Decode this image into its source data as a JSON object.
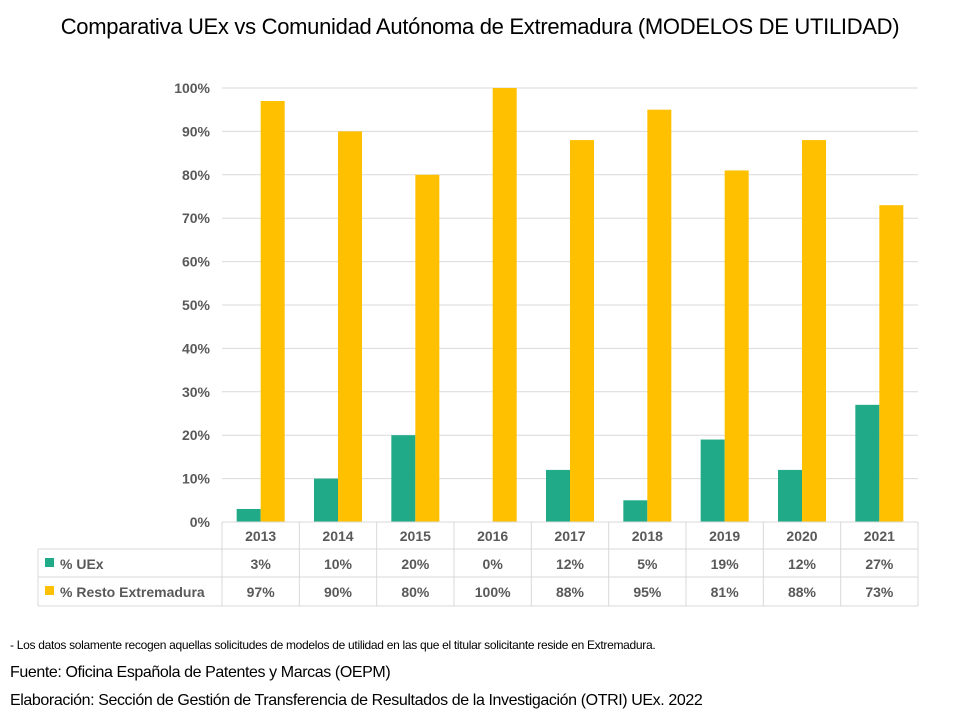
{
  "chart_data": {
    "type": "bar",
    "title": "Comparativa UEx vs Comunidad Autónoma de Extremadura (MODELOS DE UTILIDAD)",
    "categories": [
      "2013",
      "2014",
      "2015",
      "2016",
      "2017",
      "2018",
      "2019",
      "2020",
      "2021"
    ],
    "ylim": [
      0,
      100
    ],
    "yticks": [
      "0%",
      "10%",
      "20%",
      "30%",
      "40%",
      "50%",
      "60%",
      "70%",
      "80%",
      "90%",
      "100%"
    ],
    "grid": true,
    "legend": "data-table",
    "series": [
      {
        "name": "% UEx",
        "color": "#21AA87",
        "values": [
          3,
          10,
          20,
          0,
          12,
          5,
          19,
          12,
          27
        ],
        "labels": [
          "3%",
          "10%",
          "20%",
          "0%",
          "12%",
          "5%",
          "19%",
          "12%",
          "27%"
        ]
      },
      {
        "name": "% Resto Extremadura",
        "color": "#FFC000",
        "values": [
          97,
          90,
          80,
          100,
          88,
          95,
          81,
          88,
          73
        ],
        "labels": [
          "97%",
          "90%",
          "80%",
          "100%",
          "88%",
          "95%",
          "81%",
          "88%",
          "73%"
        ]
      }
    ]
  },
  "notes": {
    "disclaimer": "- Los datos solamente recogen aquellas solicitudes de modelos de utilidad en las que el titular solicitante reside en Extremadura.",
    "source": "Fuente: Oficina Española de Patentes y Marcas (OEPM)",
    "credit": "Elaboración: Sección de Gestión de Transferencia de Resultados de la Investigación (OTRI) UEx. 2022"
  }
}
